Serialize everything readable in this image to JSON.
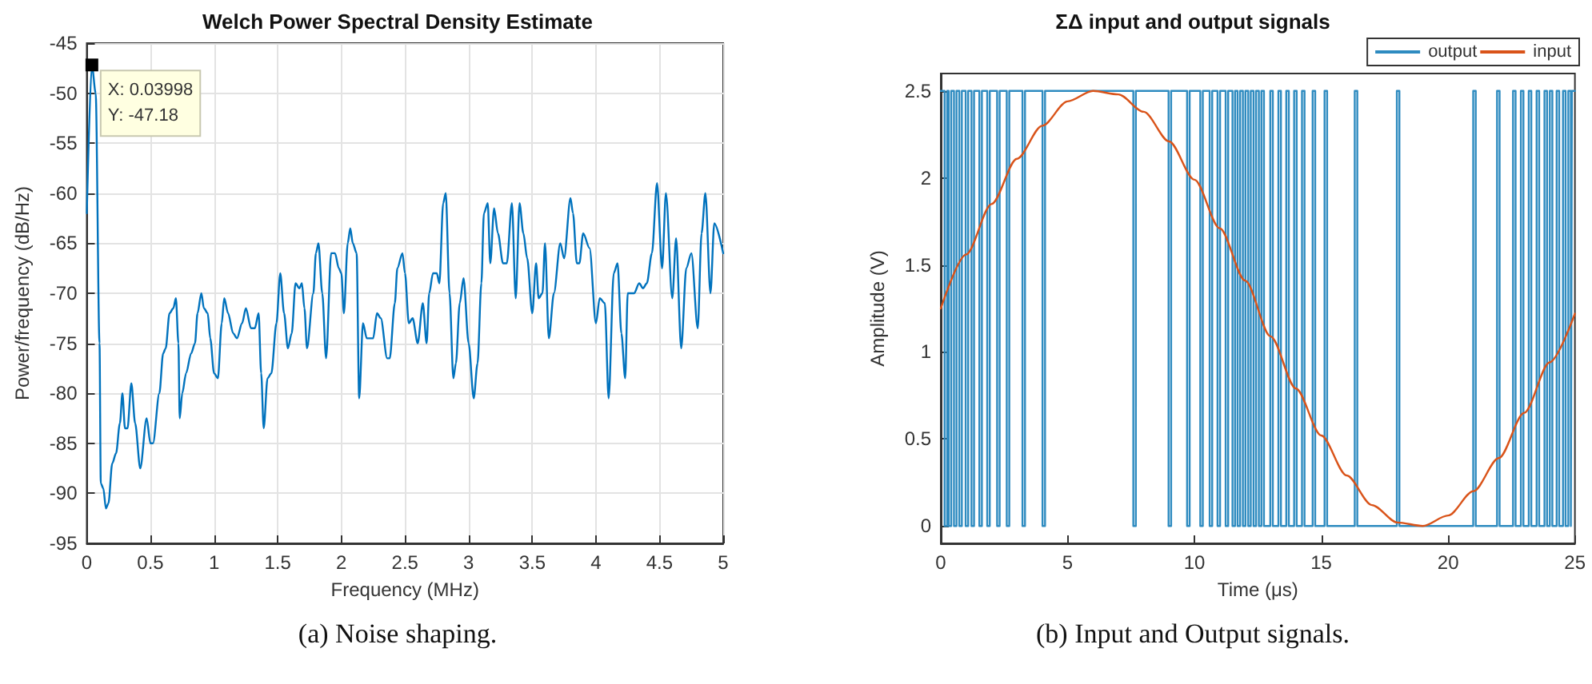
{
  "chart_data": [
    {
      "type": "line",
      "title": "Welch Power Spectral Density Estimate",
      "xlabel": "Frequency (MHz)",
      "ylabel": "Power/frequency (dB/Hz)",
      "color": "#0072bd",
      "marker": "none",
      "line_style": "solid",
      "grid": true,
      "xlim": [
        0,
        5
      ],
      "xticks": [
        0,
        0.5,
        1,
        1.5,
        2,
        2.5,
        3,
        3.5,
        4,
        4.5,
        5
      ],
      "ylim": [
        -95,
        -45
      ],
      "yticks": [
        -95,
        -90,
        -85,
        -80,
        -75,
        -70,
        -65,
        -60,
        -55,
        -50,
        -45
      ],
      "annotations": [
        {
          "text": "X: 0.03998\nY: -47.18",
          "x": 0.03998,
          "y": -47.18
        },
        "(a) Noise shaping."
      ],
      "x": [
        0,
        0.04,
        0.07,
        0.1,
        0.11,
        0.13,
        0.15,
        0.17,
        0.2,
        0.23,
        0.26,
        0.28,
        0.3,
        0.32,
        0.35,
        0.38,
        0.42,
        0.47,
        0.5,
        0.52,
        0.57,
        0.6,
        0.62,
        0.65,
        0.68,
        0.7,
        0.72,
        0.73,
        0.75,
        0.78,
        0.82,
        0.85,
        0.87,
        0.9,
        0.92,
        0.95,
        0.97,
        1.0,
        1.03,
        1.06,
        1.08,
        1.11,
        1.15,
        1.18,
        1.22,
        1.25,
        1.29,
        1.32,
        1.35,
        1.37,
        1.39,
        1.42,
        1.45,
        1.49,
        1.52,
        1.55,
        1.58,
        1.61,
        1.64,
        1.67,
        1.69,
        1.71,
        1.73,
        1.78,
        1.8,
        1.82,
        1.85,
        1.88,
        1.92,
        1.95,
        1.98,
        2.0,
        2.02,
        2.05,
        2.07,
        2.09,
        2.12,
        2.14,
        2.17,
        2.2,
        2.25,
        2.28,
        2.31,
        2.36,
        2.38,
        2.42,
        2.44,
        2.48,
        2.5,
        2.53,
        2.56,
        2.6,
        2.64,
        2.67,
        2.69,
        2.72,
        2.75,
        2.77,
        2.8,
        2.82,
        2.85,
        2.88,
        2.9,
        2.93,
        2.96,
        3.0,
        3.04,
        3.07,
        3.1,
        3.12,
        3.15,
        3.17,
        3.2,
        3.23,
        3.27,
        3.3,
        3.34,
        3.37,
        3.4,
        3.43,
        3.46,
        3.5,
        3.53,
        3.55,
        3.58,
        3.6,
        3.63,
        3.67,
        3.72,
        3.75,
        3.8,
        3.82,
        3.85,
        3.87,
        3.9,
        3.95,
        4.0,
        4.03,
        4.07,
        4.1,
        4.14,
        4.17,
        4.2,
        4.23,
        4.25,
        4.3,
        4.34,
        4.37,
        4.4,
        4.44,
        4.48,
        4.52,
        4.55,
        4.6,
        4.63,
        4.67,
        4.71,
        4.75,
        4.8,
        4.83,
        4.86,
        4.9,
        4.93,
        5.0
      ],
      "values": [
        -62,
        -47.18,
        -50,
        -75,
        -89,
        -89.5,
        -91.5,
        -91,
        -87,
        -86,
        -83,
        -80,
        -83.5,
        -83.5,
        -79,
        -83,
        -87.5,
        -82.5,
        -85,
        -85,
        -80,
        -76,
        -75.5,
        -72,
        -71.5,
        -70.5,
        -75,
        -82.5,
        -80,
        -78,
        -76,
        -75,
        -72,
        -70,
        -71.5,
        -72,
        -74.5,
        -78,
        -78.5,
        -73,
        -70.5,
        -72,
        -74,
        -74.5,
        -73,
        -71.5,
        -73.5,
        -73.5,
        -72,
        -78,
        -83.5,
        -78.5,
        -78,
        -73,
        -68,
        -72,
        -75.5,
        -74,
        -69,
        -69.5,
        -69,
        -71.5,
        -75.5,
        -70,
        -66,
        -65,
        -70,
        -76.5,
        -66,
        -66,
        -67.5,
        -68,
        -72,
        -65,
        -63.5,
        -65,
        -66,
        -80.5,
        -73,
        -74.5,
        -74.5,
        -72,
        -72.5,
        -76.5,
        -76.5,
        -71,
        -67.5,
        -66,
        -68,
        -73,
        -72.5,
        -75,
        -71,
        -75,
        -70,
        -68,
        -68,
        -69,
        -61,
        -60,
        -70,
        -78.5,
        -77,
        -71,
        -68.5,
        -75,
        -80.5,
        -77,
        -69,
        -62,
        -61,
        -67,
        -61.5,
        -64,
        -67,
        -67,
        -61,
        -70.5,
        -61,
        -64,
        -66.5,
        -72,
        -67,
        -70.5,
        -70,
        -65,
        -74.5,
        -70,
        -65,
        -66.5,
        -60.5,
        -62,
        -67,
        -67,
        -64,
        -65.5,
        -73,
        -70.5,
        -71,
        -80.5,
        -68,
        -67,
        -74,
        -78.5,
        -70,
        -70,
        -69,
        -69.5,
        -69,
        -66,
        -59,
        -67.5,
        -60,
        -70.5,
        -64.5,
        -75.5,
        -67.5,
        -66,
        -73.5,
        -64,
        -60,
        -70,
        -63,
        -66
      ]
    },
    {
      "type": "line",
      "title": "ΣΔ input and output signals",
      "xlabel": "Time (μs)",
      "ylabel": "Amplitude (V)",
      "marker": "none",
      "line_style": "solid",
      "legend": "top right",
      "xlim": [
        0,
        25
      ],
      "xticks": [
        0,
        5,
        10,
        15,
        20,
        25
      ],
      "ylim": [
        -0.1,
        2.6
      ],
      "yticks": [
        0,
        0.5,
        1,
        1.5,
        2,
        2.5
      ],
      "annotations": [
        "(b) Input and Output signals."
      ],
      "series": [
        {
          "name": "output",
          "type": "step",
          "color": "#2e8bc0",
          "x": [
            0,
            0.15,
            0.25,
            0.31,
            0.41,
            0.52,
            0.62,
            0.73,
            0.83,
            0.98,
            1.08,
            1.21,
            1.31,
            1.52,
            1.62,
            1.83,
            1.93,
            2.22,
            2.32,
            2.6,
            2.7,
            3.22,
            3.32,
            4.01,
            4.11,
            7.59,
            7.69,
            8.98,
            9.08,
            9.71,
            9.81,
            10.23,
            10.33,
            10.6,
            10.7,
            10.91,
            11.01,
            11.23,
            11.33,
            11.5,
            11.6,
            11.7,
            11.8,
            11.91,
            12.01,
            12.12,
            12.22,
            12.33,
            12.43,
            12.54,
            12.64,
            12.74,
            12.99,
            13.09,
            13.31,
            13.41,
            13.62,
            13.72,
            13.93,
            14.03,
            14.24,
            14.34,
            14.66,
            14.76,
            15.13,
            15.23,
            16.32,
            16.42,
            17.98,
            18.08,
            20.99,
            21.09,
            21.93,
            22.03,
            22.56,
            22.66,
            22.87,
            22.97,
            23.18,
            23.28,
            23.49,
            23.59,
            23.8,
            23.9,
            24.01,
            24.11,
            24.28,
            24.38,
            24.53,
            24.63,
            24.74,
            24.84,
            24.88,
            25
          ],
          "values": [
            2.5,
            0,
            2.5,
            0,
            2.5,
            0,
            2.5,
            0,
            2.5,
            0,
            2.5,
            0,
            2.5,
            0,
            2.5,
            0,
            2.5,
            0,
            2.5,
            0,
            2.5,
            0,
            2.5,
            0,
            2.5,
            0,
            2.5,
            0,
            2.5,
            0,
            2.5,
            0,
            2.5,
            0,
            2.5,
            0,
            2.5,
            0,
            2.5,
            0,
            2.5,
            0,
            2.5,
            0,
            2.5,
            0,
            2.5,
            0,
            2.5,
            0,
            2.5,
            0,
            2.5,
            0,
            2.5,
            0,
            2.5,
            0,
            2.5,
            0,
            2.5,
            0,
            2.5,
            0,
            2.5,
            0,
            2.5,
            0,
            2.5,
            0,
            2.5,
            0,
            2.5,
            0,
            2.5,
            0,
            2.5,
            0,
            2.5,
            0,
            2.5,
            0,
            2.5,
            0,
            2.5,
            0,
            2.5,
            0,
            2.5,
            0,
            2.5,
            0,
            2.5,
            2.5
          ]
        },
        {
          "name": "input",
          "type": "line",
          "color": "#d95319",
          "x": [
            0,
            1,
            2,
            3,
            4,
            5,
            6,
            7,
            8,
            9,
            10,
            11,
            12,
            13,
            14,
            15,
            16,
            17,
            18,
            19,
            20,
            21,
            22,
            23,
            24,
            25
          ],
          "values": [
            1.25,
            1.56,
            1.85,
            2.11,
            2.3,
            2.44,
            2.5,
            2.48,
            2.38,
            2.21,
            1.99,
            1.71,
            1.41,
            1.09,
            0.79,
            0.52,
            0.29,
            0.12,
            0.02,
            0,
            0.06,
            0.2,
            0.39,
            0.65,
            0.94,
            1.22
          ]
        }
      ]
    }
  ]
}
